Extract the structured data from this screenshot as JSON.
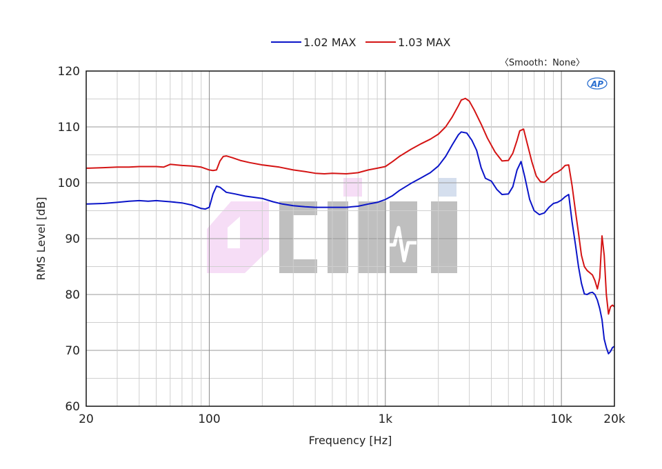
{
  "chart_data": {
    "type": "line",
    "xlabel": "Frequency [Hz]",
    "ylabel": "RMS Level [dB]",
    "xscale": "log",
    "xlim": [
      20,
      20000
    ],
    "ylim": [
      60,
      120
    ],
    "grid": true,
    "legend_placement": "top-center",
    "annotation": "〈Smooth：None〉",
    "watermark": "CIHI",
    "logo": "AP",
    "x_ticks": [
      {
        "value": 20,
        "label": "20"
      },
      {
        "value": 100,
        "label": "100"
      },
      {
        "value": 1000,
        "label": "1k"
      },
      {
        "value": 10000,
        "label": "10k"
      },
      {
        "value": 20000,
        "label": "20k"
      }
    ],
    "y_ticks": [
      {
        "value": 60,
        "label": "60"
      },
      {
        "value": 70,
        "label": "70"
      },
      {
        "value": 80,
        "label": "80"
      },
      {
        "value": 90,
        "label": "90"
      },
      {
        "value": 100,
        "label": "100"
      },
      {
        "value": 110,
        "label": "110"
      },
      {
        "value": 120,
        "label": "120"
      }
    ],
    "series": [
      {
        "name": "1.02 MAX",
        "color": "#0a14c8",
        "points": [
          [
            20,
            96.2
          ],
          [
            25,
            96.3
          ],
          [
            30,
            96.5
          ],
          [
            35,
            96.7
          ],
          [
            40,
            96.8
          ],
          [
            45,
            96.7
          ],
          [
            50,
            96.8
          ],
          [
            55,
            96.7
          ],
          [
            60,
            96.6
          ],
          [
            70,
            96.4
          ],
          [
            80,
            96.0
          ],
          [
            90,
            95.4
          ],
          [
            95,
            95.3
          ],
          [
            100,
            95.6
          ],
          [
            105,
            98.0
          ],
          [
            110,
            99.4
          ],
          [
            115,
            99.2
          ],
          [
            125,
            98.3
          ],
          [
            140,
            98.0
          ],
          [
            160,
            97.6
          ],
          [
            180,
            97.4
          ],
          [
            200,
            97.2
          ],
          [
            230,
            96.6
          ],
          [
            260,
            96.2
          ],
          [
            300,
            95.9
          ],
          [
            350,
            95.7
          ],
          [
            400,
            95.6
          ],
          [
            500,
            95.6
          ],
          [
            600,
            95.6
          ],
          [
            700,
            95.8
          ],
          [
            800,
            96.2
          ],
          [
            900,
            96.5
          ],
          [
            1000,
            97.0
          ],
          [
            1100,
            97.7
          ],
          [
            1200,
            98.6
          ],
          [
            1400,
            99.9
          ],
          [
            1600,
            100.9
          ],
          [
            1800,
            101.8
          ],
          [
            2000,
            103.0
          ],
          [
            2200,
            104.7
          ],
          [
            2400,
            106.8
          ],
          [
            2600,
            108.6
          ],
          [
            2700,
            109.1
          ],
          [
            2900,
            108.9
          ],
          [
            3100,
            107.6
          ],
          [
            3300,
            105.8
          ],
          [
            3500,
            102.7
          ],
          [
            3700,
            100.8
          ],
          [
            4000,
            100.3
          ],
          [
            4300,
            98.8
          ],
          [
            4600,
            97.9
          ],
          [
            5000,
            98.0
          ],
          [
            5300,
            99.3
          ],
          [
            5600,
            102.3
          ],
          [
            5900,
            103.8
          ],
          [
            6200,
            101.0
          ],
          [
            6600,
            97.0
          ],
          [
            7000,
            95.0
          ],
          [
            7500,
            94.3
          ],
          [
            8000,
            94.6
          ],
          [
            8500,
            95.6
          ],
          [
            9000,
            96.3
          ],
          [
            9500,
            96.5
          ],
          [
            10000,
            96.9
          ],
          [
            10500,
            97.5
          ],
          [
            11000,
            97.9
          ],
          [
            11500,
            93.0
          ],
          [
            12000,
            89.0
          ],
          [
            12500,
            85.0
          ],
          [
            13000,
            82.0
          ],
          [
            13500,
            80.1
          ],
          [
            14000,
            80.0
          ],
          [
            14500,
            80.3
          ],
          [
            15000,
            80.4
          ],
          [
            15500,
            80.0
          ],
          [
            16000,
            79.0
          ],
          [
            16500,
            77.5
          ],
          [
            17000,
            75.5
          ],
          [
            17500,
            72.0
          ],
          [
            18000,
            70.5
          ],
          [
            18500,
            69.4
          ],
          [
            19000,
            69.8
          ],
          [
            19500,
            70.5
          ],
          [
            20000,
            70.7
          ]
        ]
      },
      {
        "name": "1.03 MAX",
        "color": "#d41414",
        "points": [
          [
            20,
            102.6
          ],
          [
            25,
            102.7
          ],
          [
            30,
            102.8
          ],
          [
            35,
            102.8
          ],
          [
            40,
            102.9
          ],
          [
            45,
            102.9
          ],
          [
            50,
            102.9
          ],
          [
            55,
            102.8
          ],
          [
            60,
            103.3
          ],
          [
            65,
            103.2
          ],
          [
            70,
            103.1
          ],
          [
            80,
            103.0
          ],
          [
            90,
            102.8
          ],
          [
            100,
            102.3
          ],
          [
            105,
            102.2
          ],
          [
            110,
            102.3
          ],
          [
            115,
            103.9
          ],
          [
            120,
            104.7
          ],
          [
            125,
            104.8
          ],
          [
            135,
            104.5
          ],
          [
            150,
            104.0
          ],
          [
            170,
            103.6
          ],
          [
            200,
            103.2
          ],
          [
            250,
            102.8
          ],
          [
            300,
            102.3
          ],
          [
            350,
            102.0
          ],
          [
            400,
            101.7
          ],
          [
            450,
            101.6
          ],
          [
            500,
            101.7
          ],
          [
            600,
            101.6
          ],
          [
            700,
            101.8
          ],
          [
            800,
            102.3
          ],
          [
            900,
            102.6
          ],
          [
            1000,
            102.9
          ],
          [
            1100,
            103.8
          ],
          [
            1200,
            104.7
          ],
          [
            1400,
            106.0
          ],
          [
            1600,
            107.0
          ],
          [
            1800,
            107.8
          ],
          [
            2000,
            108.7
          ],
          [
            2200,
            110.0
          ],
          [
            2400,
            111.8
          ],
          [
            2600,
            113.8
          ],
          [
            2700,
            114.8
          ],
          [
            2850,
            115.1
          ],
          [
            3000,
            114.6
          ],
          [
            3200,
            113.0
          ],
          [
            3500,
            110.5
          ],
          [
            3800,
            108.0
          ],
          [
            4200,
            105.5
          ],
          [
            4600,
            103.9
          ],
          [
            5000,
            104.0
          ],
          [
            5300,
            105.3
          ],
          [
            5600,
            107.6
          ],
          [
            5800,
            109.3
          ],
          [
            6100,
            109.6
          ],
          [
            6400,
            107.0
          ],
          [
            6800,
            103.7
          ],
          [
            7200,
            101.2
          ],
          [
            7600,
            100.2
          ],
          [
            8000,
            100.1
          ],
          [
            8500,
            100.8
          ],
          [
            9000,
            101.6
          ],
          [
            9500,
            101.9
          ],
          [
            10000,
            102.4
          ],
          [
            10500,
            103.1
          ],
          [
            11000,
            103.2
          ],
          [
            11500,
            99.5
          ],
          [
            12000,
            95.0
          ],
          [
            12500,
            91.0
          ],
          [
            13000,
            87.0
          ],
          [
            13500,
            85.0
          ],
          [
            14000,
            84.3
          ],
          [
            15000,
            83.5
          ],
          [
            15500,
            82.5
          ],
          [
            16000,
            81.0
          ],
          [
            16500,
            83.0
          ],
          [
            17000,
            90.5
          ],
          [
            17500,
            87.0
          ],
          [
            18000,
            80.0
          ],
          [
            18500,
            76.5
          ],
          [
            19000,
            77.8
          ],
          [
            19500,
            78.1
          ],
          [
            20000,
            77.8
          ]
        ]
      }
    ]
  }
}
